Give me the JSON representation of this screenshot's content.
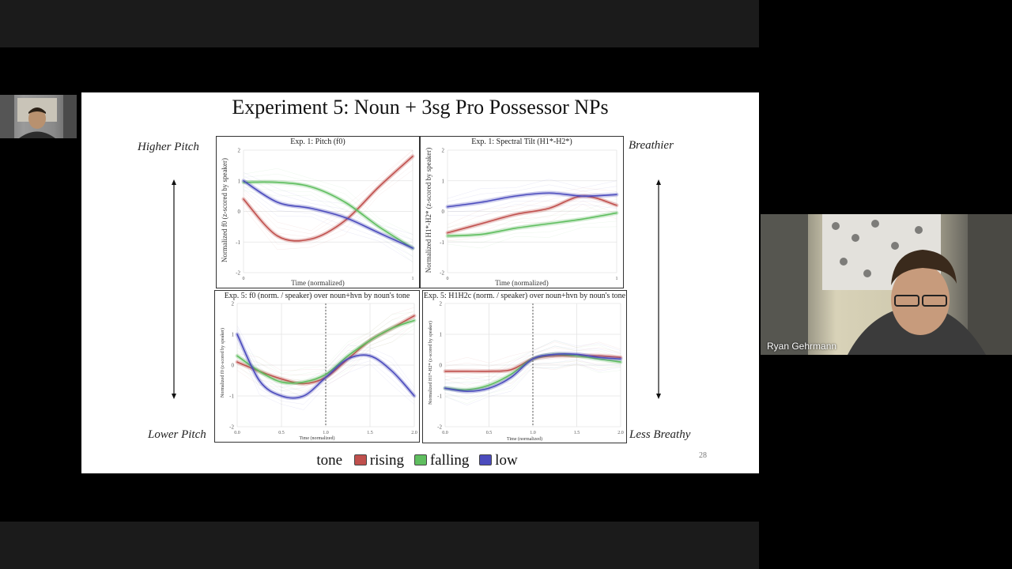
{
  "slide": {
    "title": "Experiment 5: Noun + 3sg Pro Possessor NPs",
    "labels": {
      "higher_pitch": "Higher Pitch",
      "lower_pitch": "Lower Pitch",
      "breathier": "Breathier",
      "less_breathy": "Less Breathy"
    },
    "page_number": "28",
    "legend": {
      "title": "tone",
      "items": [
        {
          "label": "rising",
          "color": "#c0504d"
        },
        {
          "label": "falling",
          "color": "#5fbe5f"
        },
        {
          "label": "low",
          "color": "#4b4bbd"
        }
      ]
    }
  },
  "chart_data": [
    {
      "type": "line",
      "title": "Exp. 1: Pitch (f0)",
      "xlabel": "Time (normalized)",
      "ylabel": "Normalized f0 (z-scored by speaker)",
      "yticks": [
        "2",
        "1",
        "0",
        "-1",
        "-2"
      ],
      "xticks": [
        "0",
        "1"
      ],
      "xlim": [
        0,
        1
      ],
      "ylim": [
        -2,
        2
      ],
      "x": [
        0,
        0.2,
        0.4,
        0.6,
        0.8,
        1
      ],
      "series": [
        {
          "name": "rising",
          "color": "#c0504d",
          "values": [
            0.4,
            -0.8,
            -0.9,
            -0.3,
            0.8,
            1.8
          ]
        },
        {
          "name": "falling",
          "color": "#5fbe5f",
          "values": [
            0.95,
            0.95,
            0.8,
            0.3,
            -0.5,
            -1.2
          ]
        },
        {
          "name": "low",
          "color": "#4b4bbd",
          "values": [
            1.0,
            0.3,
            0.1,
            -0.2,
            -0.7,
            -1.2
          ]
        }
      ]
    },
    {
      "type": "line",
      "title": "Exp. 1: Spectral Tilt (H1*-H2*)",
      "xlabel": "Time (normalized)",
      "ylabel": "Normalized H1*-H2* (z-scored by speaker)",
      "yticks": [
        "2",
        "1",
        "0",
        "-1",
        "-2"
      ],
      "xticks": [
        "0",
        "1"
      ],
      "xlim": [
        0,
        1
      ],
      "ylim": [
        -2,
        2
      ],
      "x": [
        0,
        0.2,
        0.4,
        0.6,
        0.8,
        1
      ],
      "series": [
        {
          "name": "rising",
          "color": "#c0504d",
          "values": [
            -0.7,
            -0.4,
            -0.1,
            0.1,
            0.5,
            0.2
          ]
        },
        {
          "name": "falling",
          "color": "#5fbe5f",
          "values": [
            -0.8,
            -0.75,
            -0.55,
            -0.4,
            -0.25,
            -0.05
          ]
        },
        {
          "name": "low",
          "color": "#4b4bbd",
          "values": [
            0.15,
            0.3,
            0.5,
            0.6,
            0.5,
            0.55
          ]
        }
      ]
    },
    {
      "type": "line",
      "title": "Exp. 5: f0 (norm. / speaker) over noun+hvn by noun's tone",
      "xlabel": "Time (normalized)",
      "ylabel": "Normalized f0 (z-scored by speaker)",
      "yticks": [
        "2",
        "1",
        "0",
        "-1",
        "-2"
      ],
      "xticks": [
        "0.0",
        "0.5",
        "1.0",
        "1.5",
        "2.0"
      ],
      "xlim": [
        0,
        2
      ],
      "ylim": [
        -2,
        2
      ],
      "boundary_x": 1.0,
      "x": [
        0,
        0.25,
        0.5,
        0.75,
        1.0,
        1.25,
        1.5,
        1.75,
        2.0
      ],
      "series": [
        {
          "name": "rising",
          "color": "#c0504d",
          "values": [
            0.1,
            -0.2,
            -0.45,
            -0.6,
            -0.4,
            0.2,
            0.8,
            1.2,
            1.6
          ]
        },
        {
          "name": "falling",
          "color": "#5fbe5f",
          "values": [
            0.3,
            -0.2,
            -0.55,
            -0.55,
            -0.3,
            0.3,
            0.8,
            1.2,
            1.45
          ]
        },
        {
          "name": "low",
          "color": "#4b4bbd",
          "values": [
            1.0,
            -0.5,
            -1.0,
            -1.0,
            -0.4,
            0.2,
            0.3,
            -0.2,
            -1.0
          ]
        }
      ]
    },
    {
      "type": "line",
      "title": "Exp. 5: H1H2c (norm. / speaker) over noun+hvn by noun's tone",
      "xlabel": "Time (normalized)",
      "ylabel": "Normalized H1*-H2* (z-scored by speaker)",
      "yticks": [
        "2",
        "1",
        "0",
        "-1",
        "-2"
      ],
      "xticks": [
        "0.0",
        "0.5",
        "1.0",
        "1.5",
        "2.0"
      ],
      "xlim": [
        0,
        2
      ],
      "ylim": [
        -2,
        2
      ],
      "boundary_x": 1.0,
      "x": [
        0,
        0.25,
        0.5,
        0.75,
        1.0,
        1.25,
        1.5,
        1.75,
        2.0
      ],
      "series": [
        {
          "name": "rising",
          "color": "#c0504d",
          "values": [
            -0.2,
            -0.2,
            -0.2,
            -0.15,
            0.2,
            0.3,
            0.3,
            0.3,
            0.25
          ]
        },
        {
          "name": "falling",
          "color": "#5fbe5f",
          "values": [
            -0.75,
            -0.8,
            -0.65,
            -0.3,
            0.2,
            0.35,
            0.3,
            0.2,
            0.1
          ]
        },
        {
          "name": "low",
          "color": "#4b4bbd",
          "values": [
            -0.75,
            -0.85,
            -0.75,
            -0.4,
            0.2,
            0.35,
            0.35,
            0.25,
            0.2
          ]
        }
      ]
    }
  ],
  "participants": {
    "main_name": "Ryan Gehrmann"
  }
}
